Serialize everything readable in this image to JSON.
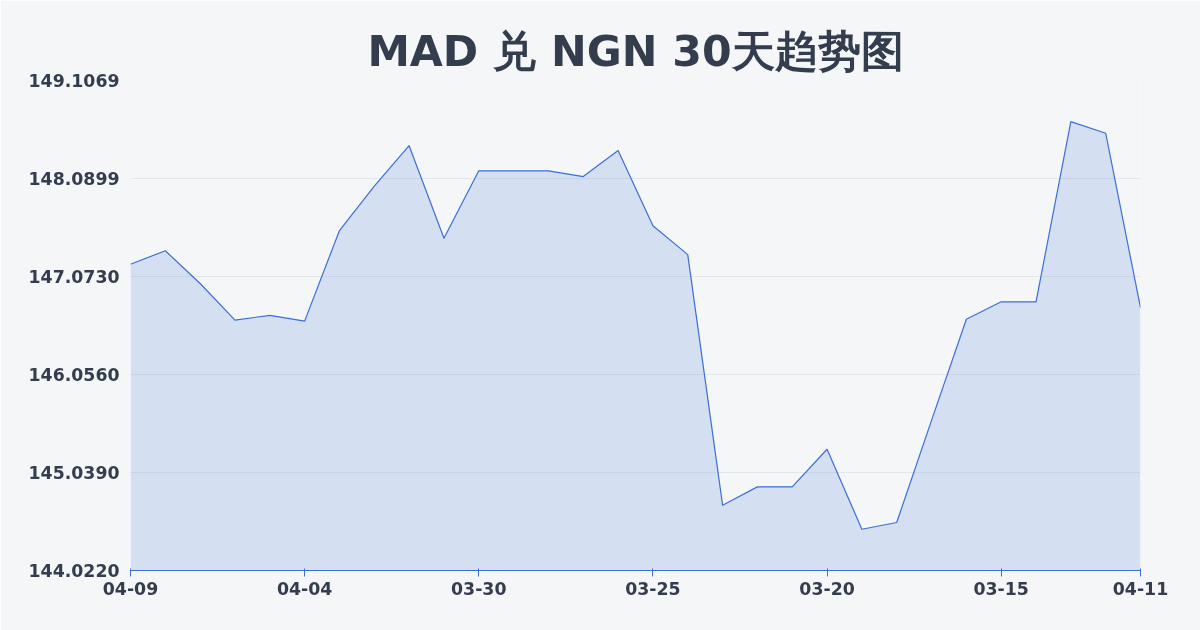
{
  "chart_data": {
    "type": "area",
    "title": "MAD 兑 NGN 30天趋势图",
    "categories": [
      "04-09",
      null,
      null,
      null,
      null,
      "04-04",
      null,
      null,
      null,
      null,
      "03-30",
      null,
      null,
      null,
      null,
      "03-25",
      null,
      null,
      null,
      null,
      "03-20",
      null,
      null,
      null,
      null,
      "03-15",
      null,
      null,
      null,
      "04-11"
    ],
    "series": [
      {
        "color": "#3b6fd4",
        "values": [
          147.2,
          147.34,
          147.0,
          146.62,
          146.67,
          146.61,
          147.55,
          148.01,
          148.43,
          147.47,
          148.17,
          148.17,
          148.17,
          148.11,
          148.38,
          147.6,
          147.3,
          144.7,
          144.89,
          144.89,
          145.28,
          144.45,
          144.52,
          145.58,
          146.63,
          146.81,
          146.81,
          148.68,
          148.56,
          146.75
        ]
      }
    ],
    "ylim": [
      144.022,
      149.1069
    ],
    "yticks": [
      {
        "value": 144.022,
        "label": "144.0220"
      },
      {
        "value": 145.039,
        "label": "145.0390"
      },
      {
        "value": 146.056,
        "label": "146.0560"
      },
      {
        "value": 147.073,
        "label": "147.0730"
      },
      {
        "value": 148.0899,
        "label": "148.0899"
      },
      {
        "value": 149.1069,
        "label": "149.1069"
      }
    ],
    "grid": "y"
  }
}
